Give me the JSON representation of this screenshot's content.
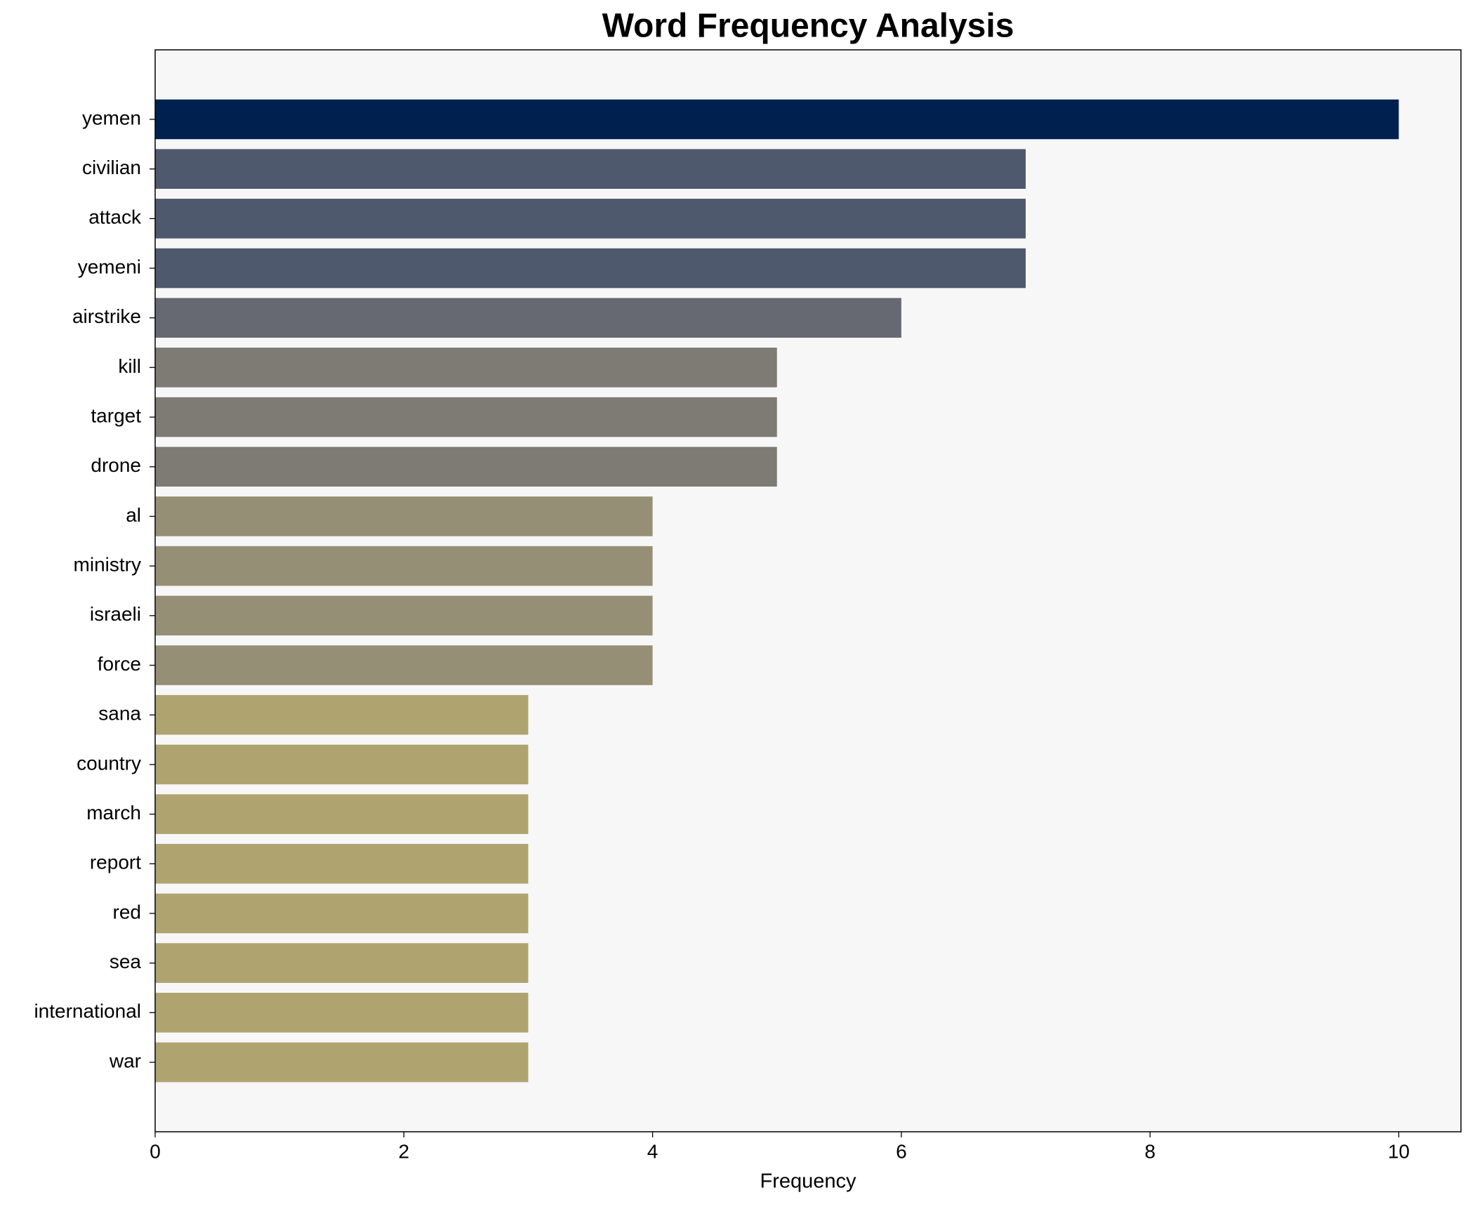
{
  "chart_data": {
    "type": "barh",
    "title": "Word Frequency Analysis",
    "x_label": "Frequency",
    "categories": [
      "yemen",
      "civilian",
      "attack",
      "yemeni",
      "airstrike",
      "kill",
      "target",
      "drone",
      "al",
      "ministry",
      "israeli",
      "force",
      "sana",
      "country",
      "march",
      "report",
      "red",
      "sea",
      "international",
      "war"
    ],
    "values": [
      10,
      7,
      7,
      7,
      6,
      5,
      5,
      5,
      4,
      4,
      4,
      4,
      3,
      3,
      3,
      3,
      3,
      3,
      3,
      3
    ],
    "colors": [
      "#00214f",
      "#4f596d",
      "#4f596d",
      "#4f596d",
      "#676972",
      "#7d7b74",
      "#7d7b74",
      "#7d7b74",
      "#958f75",
      "#958f75",
      "#958f75",
      "#958f75",
      "#afa470",
      "#afa470",
      "#afa470",
      "#afa470",
      "#afa470",
      "#afa470",
      "#afa470",
      "#afa470"
    ],
    "xlim": [
      0,
      10.5
    ],
    "xticks": [
      0,
      2,
      4,
      6,
      8,
      10
    ],
    "background": "#f7f7f7"
  }
}
